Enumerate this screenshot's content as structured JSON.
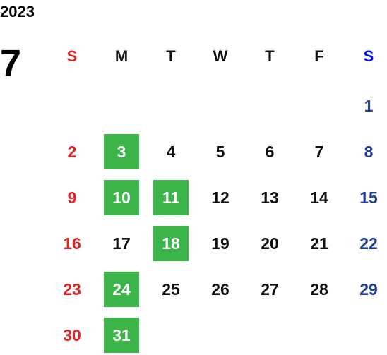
{
  "year": "2023",
  "month": "7",
  "weekdays": [
    "S",
    "M",
    "T",
    "W",
    "T",
    "F",
    "S"
  ],
  "weeks": [
    [
      null,
      null,
      null,
      null,
      null,
      null,
      {
        "day": 1,
        "highlight": false
      }
    ],
    [
      {
        "day": 2,
        "highlight": false
      },
      {
        "day": 3,
        "highlight": true
      },
      {
        "day": 4,
        "highlight": false
      },
      {
        "day": 5,
        "highlight": false
      },
      {
        "day": 6,
        "highlight": false
      },
      {
        "day": 7,
        "highlight": false
      },
      {
        "day": 8,
        "highlight": false
      }
    ],
    [
      {
        "day": 9,
        "highlight": false
      },
      {
        "day": 10,
        "highlight": true
      },
      {
        "day": 11,
        "highlight": true
      },
      {
        "day": 12,
        "highlight": false
      },
      {
        "day": 13,
        "highlight": false
      },
      {
        "day": 14,
        "highlight": false
      },
      {
        "day": 15,
        "highlight": false
      }
    ],
    [
      {
        "day": 16,
        "highlight": false
      },
      {
        "day": 17,
        "highlight": false
      },
      {
        "day": 18,
        "highlight": true
      },
      {
        "day": 19,
        "highlight": false
      },
      {
        "day": 20,
        "highlight": false
      },
      {
        "day": 21,
        "highlight": false
      },
      {
        "day": 22,
        "highlight": false
      }
    ],
    [
      {
        "day": 23,
        "highlight": false
      },
      {
        "day": 24,
        "highlight": true
      },
      {
        "day": 25,
        "highlight": false
      },
      {
        "day": 26,
        "highlight": false
      },
      {
        "day": 27,
        "highlight": false
      },
      {
        "day": 28,
        "highlight": false
      },
      {
        "day": 29,
        "highlight": false
      }
    ],
    [
      {
        "day": 30,
        "highlight": false
      },
      {
        "day": 31,
        "highlight": true
      },
      null,
      null,
      null,
      null,
      null
    ]
  ]
}
